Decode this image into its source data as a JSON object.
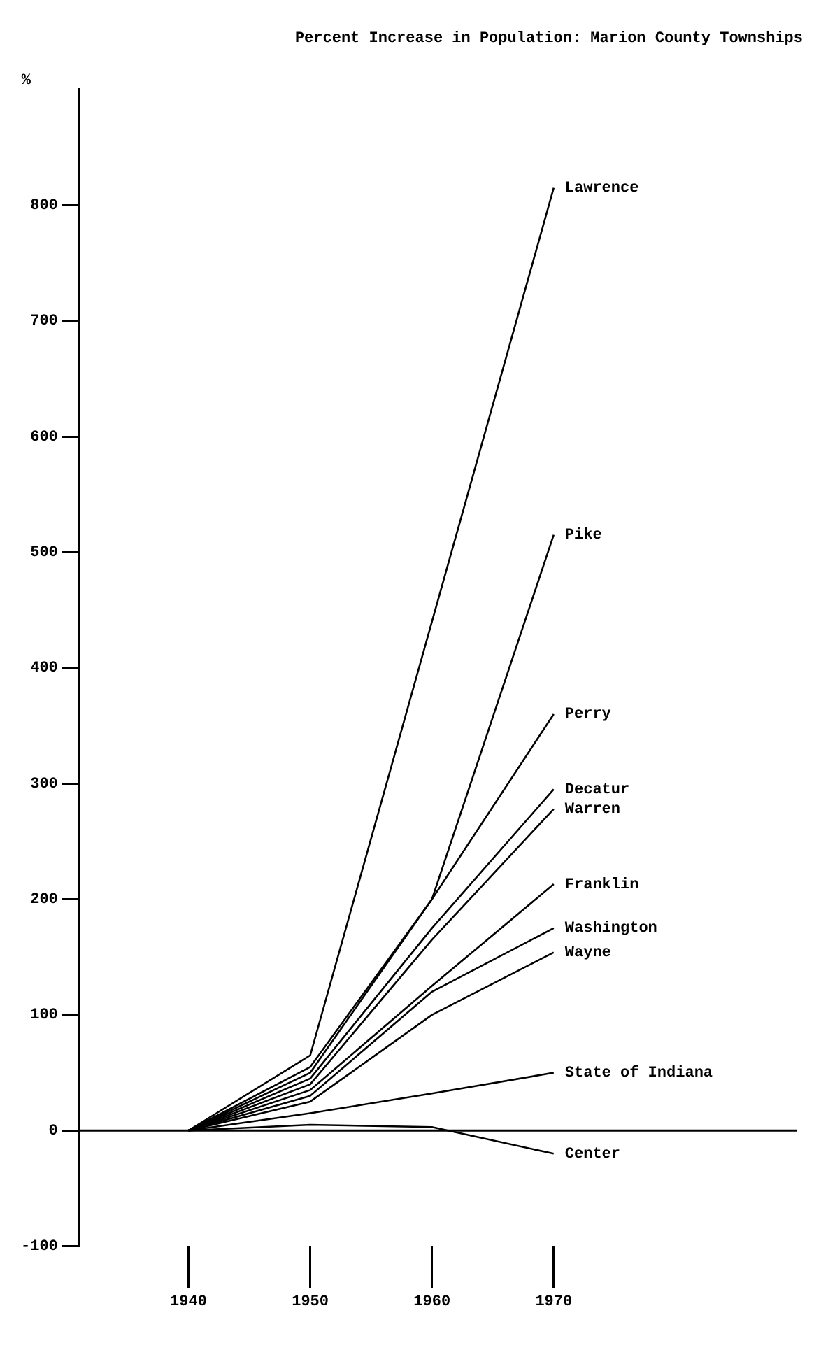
{
  "chart_data": {
    "type": "line",
    "title": "Percent Increase in Population: Marion County Townships",
    "ylabel": "%",
    "x": [
      1940,
      1950,
      1960,
      1970
    ],
    "xlim": [
      1931,
      1990
    ],
    "xticks": [
      1940,
      1950,
      1960,
      1970
    ],
    "ylim": [
      -100,
      900
    ],
    "yticks": [
      -100,
      0,
      100,
      200,
      300,
      400,
      500,
      600,
      700,
      800
    ],
    "grid": false,
    "legend": false,
    "marker": "none",
    "line_style": "solid",
    "ref_lines": [
      {
        "axis": "y",
        "value": 0,
        "color": "#000000"
      }
    ],
    "series": [
      {
        "name": "Lawrence",
        "color": "#000000",
        "values": [
          0,
          65,
          440,
          815
        ]
      },
      {
        "name": "Pike",
        "color": "#000000",
        "values": [
          0,
          55,
          200,
          515
        ]
      },
      {
        "name": "Perry",
        "color": "#000000",
        "values": [
          0,
          50,
          200,
          360
        ]
      },
      {
        "name": "Decatur",
        "color": "#000000",
        "values": [
          0,
          45,
          175,
          295
        ]
      },
      {
        "name": "Warren",
        "color": "#000000",
        "values": [
          0,
          40,
          165,
          278
        ]
      },
      {
        "name": "Franklin",
        "color": "#000000",
        "values": [
          0,
          35,
          125,
          213
        ]
      },
      {
        "name": "Washington",
        "color": "#000000",
        "values": [
          0,
          30,
          120,
          175
        ]
      },
      {
        "name": "Wayne",
        "color": "#000000",
        "values": [
          0,
          25,
          100,
          154
        ]
      },
      {
        "name": "State of Indiana",
        "color": "#000000",
        "values": [
          0,
          15,
          32,
          50
        ]
      },
      {
        "name": "Center",
        "color": "#000000",
        "values": [
          0,
          5,
          3,
          -20
        ]
      }
    ]
  }
}
